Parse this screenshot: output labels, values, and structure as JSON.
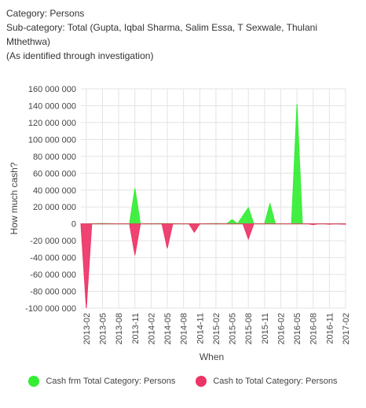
{
  "header": {
    "category": "Category: Persons",
    "subcategory": "Sub-category:  Total (Gupta, Iqbal Sharma, Salim Essa, T Sexwale, Thulani Mthethwa)",
    "note": "(As identified through investigation)"
  },
  "chart_data": {
    "type": "area",
    "xlabel": "When",
    "ylabel": "How much cash?",
    "ylim": [
      -100000000,
      160000000
    ],
    "yticks": [
      160000000,
      140000000,
      120000000,
      100000000,
      80000000,
      60000000,
      40000000,
      20000000,
      0,
      -20000000,
      -40000000,
      -60000000,
      -80000000,
      -100000000
    ],
    "ytick_labels": [
      "160 000 000",
      "140 000 000",
      "120 000 000",
      "100 000 000",
      "80 000 000",
      "60 000 000",
      "40 000 000",
      "20 000 000",
      "0",
      "-20 000 000",
      "-40 000 000",
      "-60 000 000",
      "-80 000 000",
      "-100 000 000"
    ],
    "x_tick_labels": [
      "2013-02",
      "2013-05",
      "2013-08",
      "2013-11",
      "2014-02",
      "2014-05",
      "2014-08",
      "2014-11",
      "2015-02",
      "2015-05",
      "2015-08",
      "2015-11",
      "2016-02",
      "2016-05",
      "2016-08",
      "2016-11",
      "2017-02"
    ],
    "grid": true,
    "legend_position": "bottom",
    "series": [
      {
        "name": "Cash frm Total Category: Persons",
        "color": "#33ee33",
        "points": [
          [
            "2013-02",
            0
          ],
          [
            "2013-05",
            500000
          ],
          [
            "2013-08",
            0
          ],
          [
            "2013-10",
            0
          ],
          [
            "2013-11",
            42000000
          ],
          [
            "2013-12",
            0
          ],
          [
            "2014-03",
            300000
          ],
          [
            "2014-05",
            300000
          ],
          [
            "2014-08",
            0
          ],
          [
            "2014-11",
            0
          ],
          [
            "2015-02",
            400000
          ],
          [
            "2015-04",
            0
          ],
          [
            "2015-05",
            5000000
          ],
          [
            "2015-06",
            0
          ],
          [
            "2015-08",
            19000000
          ],
          [
            "2015-09",
            0
          ],
          [
            "2015-11",
            0
          ],
          [
            "2015-12",
            24000000
          ],
          [
            "2016-01",
            0
          ],
          [
            "2016-04",
            0
          ],
          [
            "2016-05",
            142000000
          ],
          [
            "2016-06",
            0
          ],
          [
            "2016-08",
            0
          ],
          [
            "2016-11",
            0
          ],
          [
            "2017-02",
            0
          ]
        ]
      },
      {
        "name": "Cash to Total Category: Persons",
        "color": "#ee3366",
        "points": [
          [
            "2013-01",
            0
          ],
          [
            "2013-02",
            -100000000
          ],
          [
            "2013-03",
            0
          ],
          [
            "2013-08",
            0
          ],
          [
            "2013-10",
            0
          ],
          [
            "2013-11",
            -37000000
          ],
          [
            "2013-12",
            0
          ],
          [
            "2014-04",
            0
          ],
          [
            "2014-05",
            -29000000
          ],
          [
            "2014-06",
            0
          ],
          [
            "2014-09",
            0
          ],
          [
            "2014-10",
            -10000000
          ],
          [
            "2014-11",
            0
          ],
          [
            "2015-07",
            0
          ],
          [
            "2015-08",
            -18000000
          ],
          [
            "2015-09",
            0
          ],
          [
            "2016-07",
            0
          ],
          [
            "2016-08",
            -1000000
          ],
          [
            "2016-09",
            0
          ],
          [
            "2016-10",
            0
          ],
          [
            "2016-11",
            -500000
          ],
          [
            "2016-12",
            0
          ],
          [
            "2017-02",
            -500000
          ]
        ]
      }
    ]
  }
}
